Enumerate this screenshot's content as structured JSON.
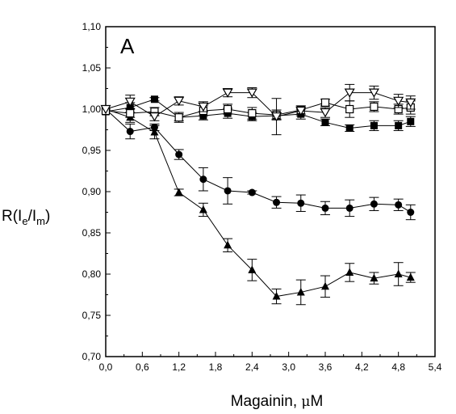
{
  "chart_data": {
    "type": "scatter",
    "panel_label": "A",
    "xlabel": {
      "main": "Magainin, ",
      "mu": "μ",
      "unit": "M"
    },
    "ylabel": {
      "prefix": "R(I",
      "sub1": "e",
      "mid": "/I",
      "sub2": "m",
      "suffix": ")"
    },
    "xlim": [
      0.0,
      5.4
    ],
    "ylim": [
      0.7,
      1.1
    ],
    "xticks": [
      0.0,
      0.6,
      1.2,
      1.8,
      2.4,
      3.0,
      3.6,
      4.2,
      4.8,
      5.4
    ],
    "xtick_labels": [
      "0,0",
      "0,6",
      "1,2",
      "1,8",
      "2,4",
      "3,0",
      "3,6",
      "4,2",
      "4,8",
      "5,4"
    ],
    "yticks": [
      0.7,
      0.75,
      0.8,
      0.85,
      0.9,
      0.95,
      1.0,
      1.05,
      1.1
    ],
    "ytick_labels": [
      "0,70",
      "0,75",
      "0,80",
      "0,85",
      "0,90",
      "0,95",
      "1,00",
      "1,05",
      "1,10"
    ],
    "grid": false,
    "legend": "none",
    "series": [
      {
        "marker": "filled-triangle",
        "x": [
          0.0,
          0.4,
          0.8,
          1.2,
          1.6,
          2.0,
          2.4,
          2.8,
          3.2,
          3.6,
          4.0,
          4.4,
          4.8,
          5.0
        ],
        "y": [
          1.0,
          0.99,
          0.972,
          0.899,
          0.878,
          0.835,
          0.805,
          0.773,
          0.778,
          0.785,
          0.802,
          0.795,
          0.8,
          0.796
        ],
        "err": [
          0.0,
          0.006,
          0.008,
          0.004,
          0.008,
          0.008,
          0.013,
          0.009,
          0.015,
          0.013,
          0.011,
          0.007,
          0.014,
          0.006
        ]
      },
      {
        "marker": "filled-circle",
        "x": [
          0.0,
          0.4,
          0.8,
          1.2,
          1.6,
          2.0,
          2.4,
          2.8,
          3.2,
          3.6,
          4.0,
          4.4,
          4.8,
          5.0
        ],
        "y": [
          1.0,
          0.973,
          0.978,
          0.945,
          0.915,
          0.901,
          0.899,
          0.887,
          0.886,
          0.88,
          0.88,
          0.885,
          0.884,
          0.875
        ],
        "err": [
          0.0,
          0.009,
          0.004,
          0.006,
          0.014,
          0.016,
          0.002,
          0.007,
          0.01,
          0.008,
          0.01,
          0.008,
          0.007,
          0.009
        ]
      },
      {
        "marker": "filled-square",
        "x": [
          0.0,
          0.4,
          0.8,
          1.2,
          1.6,
          2.0,
          2.4,
          2.8,
          3.2,
          3.6,
          4.0,
          4.4,
          4.8,
          5.0
        ],
        "y": [
          0.997,
          1.002,
          1.012,
          0.99,
          0.992,
          0.995,
          0.991,
          0.992,
          0.994,
          0.984,
          0.977,
          0.98,
          0.98,
          0.985
        ],
        "err": [
          0.0,
          0.006,
          0.002,
          0.004,
          0.005,
          0.006,
          0.005,
          0.004,
          0.006,
          0.004,
          0.004,
          0.006,
          0.006,
          0.006
        ]
      },
      {
        "marker": "open-square",
        "x": [
          0.0,
          0.4,
          0.8,
          1.2,
          1.6,
          2.0,
          2.4,
          2.8,
          3.2,
          3.6,
          4.0,
          4.4,
          4.8,
          5.0
        ],
        "y": [
          0.998,
          0.995,
          0.997,
          0.99,
          0.998,
          1.0,
          0.995,
          0.993,
          0.999,
          1.008,
          1.0,
          1.003,
          1.0,
          1.002
        ],
        "err": [
          0.0,
          0.005,
          0.005,
          0.006,
          0.006,
          0.006,
          0.007,
          0.006,
          0.005,
          0.004,
          0.01,
          0.006,
          0.006,
          0.008
        ]
      },
      {
        "marker": "open-triangle-down",
        "x": [
          0.0,
          0.4,
          0.8,
          1.2,
          1.6,
          2.0,
          2.4,
          2.8,
          3.2,
          3.6,
          4.0,
          4.4,
          4.8,
          5.0
        ],
        "y": [
          1.0,
          1.009,
          0.991,
          1.01,
          1.003,
          1.02,
          1.02,
          0.991,
          0.998,
          0.996,
          1.02,
          1.02,
          1.01,
          1.008
        ],
        "err": [
          0.0,
          0.008,
          0.005,
          0.005,
          0.006,
          0.005,
          0.006,
          0.022,
          0.006,
          0.006,
          0.01,
          0.008,
          0.008,
          0.008
        ]
      }
    ]
  }
}
